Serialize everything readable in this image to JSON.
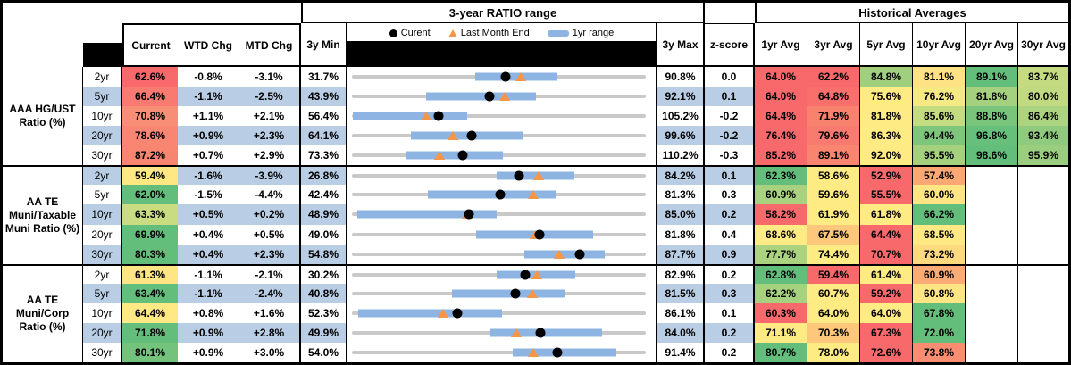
{
  "colors": {
    "row_alt": "#B9CDE4",
    "bar_1yr": "#8DB4E2",
    "track": "#C9C9C9",
    "marker_current": "#000000",
    "marker_last_month_end": "#F79646",
    "border": "#000000",
    "header_black_fill": "#000000",
    "scale_low": "#F8696B",
    "scale_mid": "#FFEB84",
    "scale_high": "#63BE7B"
  },
  "chart_data": {
    "type": "table",
    "group_titles": {
      "range": "3-year RATIO range",
      "historical": "Historical Averages"
    },
    "col_labels": {
      "current": "Current",
      "wtd": "WTD Chg",
      "mtd": "MTD Chg",
      "min": "3y Min",
      "max": "3y Max",
      "z": "z-score"
    },
    "avg_labels": [
      "1yr Avg",
      "3yr Avg",
      "5yr Avg",
      "10yr Avg",
      "20yr Avg",
      "30yr Avg"
    ],
    "legend": [
      {
        "marker": "dot",
        "label": "Curent"
      },
      {
        "marker": "triangle",
        "label": "Last Month End"
      },
      {
        "marker": "bar",
        "label": "1yr range"
      }
    ],
    "sections": [
      {
        "label": "AAA HG/UST Ratio (%)",
        "rows": [
          {
            "tenor": "2yr",
            "current": "62.6%",
            "cur_val": 62.6,
            "current_color": "#F8696B",
            "wtd": "-0.8%",
            "mtd": "-3.1%",
            "min3y": "31.7%",
            "min_val": 31.7,
            "max3y": "90.8%",
            "max_val": 90.8,
            "zscore": "0.0",
            "lme_val": 65.7,
            "range_1yr": [
              56.4,
              73.1
            ],
            "avgs": [
              {
                "text": "64.0%",
                "color": "#F8696B"
              },
              {
                "text": "62.2%",
                "color": "#F8696B"
              },
              {
                "text": "84.8%",
                "color": "#A0D07F"
              },
              {
                "text": "81.1%",
                "color": "#FFE283"
              },
              {
                "text": "89.1%",
                "color": "#63BE7B"
              },
              {
                "text": "83.7%",
                "color": "#C5DB81"
              }
            ]
          },
          {
            "tenor": "5yr",
            "current": "66.4%",
            "cur_val": 66.4,
            "current_color": "#F87A70",
            "wtd": "-1.1%",
            "mtd": "-2.5%",
            "min3y": "43.9%",
            "min_val": 43.9,
            "max3y": "92.1%",
            "max_val": 92.1,
            "zscore": "0.1",
            "lme_val": 68.9,
            "range_1yr": [
              56.1,
              74.1
            ],
            "avgs": [
              {
                "text": "64.0%",
                "color": "#F8696B"
              },
              {
                "text": "64.8%",
                "color": "#F96F6C"
              },
              {
                "text": "75.6%",
                "color": "#FFEB84"
              },
              {
                "text": "76.2%",
                "color": "#F5E983"
              },
              {
                "text": "81.8%",
                "color": "#A5D17F"
              },
              {
                "text": "80.0%",
                "color": "#C1DA81"
              }
            ]
          },
          {
            "tenor": "10yr",
            "current": "70.8%",
            "cur_val": 70.8,
            "current_color": "#F98E77",
            "wtd": "+1.1%",
            "mtd": "+2.1%",
            "min3y": "56.4%",
            "min_val": 56.4,
            "max3y": "105.2%",
            "max_val": 105.2,
            "zscore": "-0.2",
            "lme_val": 68.7,
            "range_1yr": [
              56.6,
              75.6
            ],
            "avgs": [
              {
                "text": "64.4%",
                "color": "#F8696B"
              },
              {
                "text": "71.9%",
                "color": "#F9826F"
              },
              {
                "text": "81.8%",
                "color": "#FFEB84"
              },
              {
                "text": "85.6%",
                "color": "#C3DB81"
              },
              {
                "text": "88.8%",
                "color": "#7AC57C"
              },
              {
                "text": "86.4%",
                "color": "#ACD380"
              }
            ]
          },
          {
            "tenor": "20yr",
            "current": "78.6%",
            "cur_val": 78.6,
            "current_color": "#F98672",
            "wtd": "+0.9%",
            "mtd": "+2.3%",
            "min3y": "64.1%",
            "min_val": 64.1,
            "max3y": "99.6%",
            "max_val": 99.6,
            "zscore": "-0.2",
            "lme_val": 76.3,
            "range_1yr": [
              71.2,
              84.8
            ],
            "avgs": [
              {
                "text": "76.4%",
                "color": "#F8696B"
              },
              {
                "text": "79.6%",
                "color": "#F97A6E"
              },
              {
                "text": "86.3%",
                "color": "#FFEB84"
              },
              {
                "text": "94.4%",
                "color": "#7FC67D"
              },
              {
                "text": "96.8%",
                "color": "#66BF7B"
              },
              {
                "text": "93.4%",
                "color": "#8FCA7E"
              }
            ]
          },
          {
            "tenor": "30yr",
            "current": "87.2%",
            "cur_val": 87.2,
            "current_color": "#F88570",
            "wtd": "+0.7%",
            "mtd": "+2.9%",
            "min3y": "73.3%",
            "min_val": 73.3,
            "max3y": "110.2%",
            "max_val": 110.2,
            "zscore": "-0.3",
            "lme_val": 84.3,
            "range_1yr": [
              80.0,
              92.2
            ],
            "avgs": [
              {
                "text": "85.2%",
                "color": "#F8696B"
              },
              {
                "text": "89.1%",
                "color": "#F98571"
              },
              {
                "text": "92.0%",
                "color": "#FFEB84"
              },
              {
                "text": "95.5%",
                "color": "#A5D17F"
              },
              {
                "text": "98.6%",
                "color": "#63BE7B"
              },
              {
                "text": "95.9%",
                "color": "#9ACD7E"
              }
            ]
          }
        ]
      },
      {
        "label": "AA TE Muni/Taxable Muni Ratio (%)",
        "rows": [
          {
            "tenor": "2yr",
            "current": "59.4%",
            "cur_val": 59.4,
            "current_color": "#FFE884",
            "wtd": "-1.6%",
            "mtd": "-3.9%",
            "min3y": "26.8%",
            "min_val": 26.8,
            "max3y": "84.2%",
            "max_val": 84.2,
            "zscore": "0.1",
            "lme_val": 63.3,
            "range_1yr": [
              55.1,
              70.2
            ],
            "avgs": [
              {
                "text": "62.3%",
                "color": "#63BE7B"
              },
              {
                "text": "58.6%",
                "color": "#FFEB84"
              },
              {
                "text": "52.9%",
                "color": "#F8696B"
              },
              {
                "text": "57.4%",
                "color": "#FBA875"
              },
              {
                "text": "",
                "color": "#FFFFFF"
              },
              {
                "text": "",
                "color": "#FFFFFF"
              }
            ]
          },
          {
            "tenor": "5yr",
            "current": "62.0%",
            "cur_val": 62.0,
            "current_color": "#63BE7B",
            "wtd": "-1.5%",
            "mtd": "-4.4%",
            "min3y": "42.4%",
            "min_val": 42.4,
            "max3y": "81.3%",
            "max_val": 81.3,
            "zscore": "0.3",
            "lme_val": 66.4,
            "range_1yr": [
              52.5,
              69.5
            ],
            "avgs": [
              {
                "text": "60.9%",
                "color": "#A8D27F"
              },
              {
                "text": "59.6%",
                "color": "#FFEB84"
              },
              {
                "text": "55.5%",
                "color": "#F8696B"
              },
              {
                "text": "60.0%",
                "color": "#FFE583"
              },
              {
                "text": "",
                "color": "#FFFFFF"
              },
              {
                "text": "",
                "color": "#FFFFFF"
              }
            ]
          },
          {
            "tenor": "10yr",
            "current": "63.3%",
            "cur_val": 63.3,
            "current_color": "#C9DC81",
            "wtd": "+0.5%",
            "mtd": "+0.2%",
            "min3y": "48.9%",
            "min_val": 48.9,
            "max3y": "85.0%",
            "max_val": 85.0,
            "zscore": "0.2",
            "lme_val": 63.1,
            "range_1yr": [
              49.6,
              66.7
            ],
            "avgs": [
              {
                "text": "58.2%",
                "color": "#F8696B"
              },
              {
                "text": "61.9%",
                "color": "#FFEB84"
              },
              {
                "text": "61.8%",
                "color": "#FFEB84"
              },
              {
                "text": "66.2%",
                "color": "#63BE7B"
              },
              {
                "text": "",
                "color": "#FFFFFF"
              },
              {
                "text": "",
                "color": "#FFFFFF"
              }
            ]
          },
          {
            "tenor": "20yr",
            "current": "69.9%",
            "cur_val": 69.9,
            "current_color": "#63BE7B",
            "wtd": "+0.4%",
            "mtd": "+0.5%",
            "min3y": "49.0%",
            "min_val": 49.0,
            "max3y": "81.8%",
            "max_val": 81.8,
            "zscore": "0.4",
            "lme_val": 69.4,
            "range_1yr": [
              62.9,
              75.9
            ],
            "avgs": [
              {
                "text": "68.6%",
                "color": "#FFEB84"
              },
              {
                "text": "67.5%",
                "color": "#FDC77C"
              },
              {
                "text": "64.4%",
                "color": "#F8696B"
              },
              {
                "text": "68.5%",
                "color": "#FFE984"
              },
              {
                "text": "",
                "color": "#FFFFFF"
              },
              {
                "text": "",
                "color": "#FFFFFF"
              }
            ]
          },
          {
            "tenor": "30yr",
            "current": "80.3%",
            "cur_val": 80.3,
            "current_color": "#63BE7B",
            "wtd": "+0.4%",
            "mtd": "+2.3%",
            "min3y": "54.8%",
            "min_val": 54.8,
            "max3y": "87.7%",
            "max_val": 87.7,
            "zscore": "0.9",
            "lme_val": 78.0,
            "range_1yr": [
              74.1,
              83.1
            ],
            "avgs": [
              {
                "text": "77.7%",
                "color": "#ABD27F"
              },
              {
                "text": "74.4%",
                "color": "#FFEB84"
              },
              {
                "text": "70.7%",
                "color": "#F8696B"
              },
              {
                "text": "73.2%",
                "color": "#FDD97F"
              },
              {
                "text": "",
                "color": "#FFFFFF"
              },
              {
                "text": "",
                "color": "#FFFFFF"
              }
            ]
          }
        ]
      },
      {
        "label": "AA TE Muni/Corp Ratio (%)",
        "rows": [
          {
            "tenor": "2yr",
            "current": "61.3%",
            "cur_val": 61.3,
            "current_color": "#FFE584",
            "wtd": "-1.1%",
            "mtd": "-2.1%",
            "min3y": "30.2%",
            "min_val": 30.2,
            "max3y": "82.9%",
            "max_val": 82.9,
            "zscore": "0.2",
            "lme_val": 63.4,
            "range_1yr": [
              56.2,
              70.3
            ],
            "avgs": [
              {
                "text": "62.8%",
                "color": "#63BE7B"
              },
              {
                "text": "59.4%",
                "color": "#F8696B"
              },
              {
                "text": "61.4%",
                "color": "#FFEB84"
              },
              {
                "text": "60.9%",
                "color": "#FBAC76"
              },
              {
                "text": "",
                "color": "#FFFFFF"
              },
              {
                "text": "",
                "color": "#FFFFFF"
              }
            ]
          },
          {
            "tenor": "5yr",
            "current": "63.4%",
            "cur_val": 63.4,
            "current_color": "#63BE7B",
            "wtd": "-1.1%",
            "mtd": "-2.4%",
            "min3y": "40.8%",
            "min_val": 40.8,
            "max3y": "81.5%",
            "max_val": 81.5,
            "zscore": "0.3",
            "lme_val": 65.8,
            "range_1yr": [
              54.6,
              70.4
            ],
            "avgs": [
              {
                "text": "62.2%",
                "color": "#A6D17F"
              },
              {
                "text": "60.7%",
                "color": "#FFEB84"
              },
              {
                "text": "59.2%",
                "color": "#F8696B"
              },
              {
                "text": "60.8%",
                "color": "#FFE583"
              },
              {
                "text": "",
                "color": "#FFFFFF"
              },
              {
                "text": "",
                "color": "#FFFFFF"
              }
            ]
          },
          {
            "tenor": "10yr",
            "current": "64.4%",
            "cur_val": 64.4,
            "current_color": "#FFE984",
            "wtd": "+0.8%",
            "mtd": "+1.6%",
            "min3y": "52.3%",
            "min_val": 52.3,
            "max3y": "86.1%",
            "max_val": 86.1,
            "zscore": "0.1",
            "lme_val": 62.8,
            "range_1yr": [
              53.0,
              69.6
            ],
            "avgs": [
              {
                "text": "60.3%",
                "color": "#F8696B"
              },
              {
                "text": "64.0%",
                "color": "#FFEB84"
              },
              {
                "text": "64.0%",
                "color": "#FFEB84"
              },
              {
                "text": "67.8%",
                "color": "#63BE7B"
              },
              {
                "text": "",
                "color": "#FFFFFF"
              },
              {
                "text": "",
                "color": "#FFFFFF"
              }
            ]
          },
          {
            "tenor": "20yr",
            "current": "71.8%",
            "cur_val": 71.8,
            "current_color": "#63BE7B",
            "wtd": "+0.9%",
            "mtd": "+2.8%",
            "min3y": "49.9%",
            "min_val": 49.9,
            "max3y": "84.0%",
            "max_val": 84.0,
            "zscore": "0.2",
            "lme_val": 69.0,
            "range_1yr": [
              66.0,
              78.9
            ],
            "avgs": [
              {
                "text": "71.1%",
                "color": "#FFEB84"
              },
              {
                "text": "70.3%",
                "color": "#FDC87C"
              },
              {
                "text": "67.3%",
                "color": "#F8696B"
              },
              {
                "text": "72.0%",
                "color": "#63BE7B"
              },
              {
                "text": "",
                "color": "#FFFFFF"
              },
              {
                "text": "",
                "color": "#FFFFFF"
              }
            ]
          },
          {
            "tenor": "30yr",
            "current": "80.1%",
            "cur_val": 80.1,
            "current_color": "#74C37C",
            "wtd": "+0.9%",
            "mtd": "+3.0%",
            "min3y": "54.0%",
            "min_val": 54.0,
            "max3y": "91.4%",
            "max_val": 91.4,
            "zscore": "0.2",
            "lme_val": 77.1,
            "range_1yr": [
              74.5,
              87.7
            ],
            "avgs": [
              {
                "text": "80.7%",
                "color": "#63BE7B"
              },
              {
                "text": "78.0%",
                "color": "#FFEB84"
              },
              {
                "text": "72.6%",
                "color": "#F8696B"
              },
              {
                "text": "73.8%",
                "color": "#F98D72"
              },
              {
                "text": "",
                "color": "#FFFFFF"
              },
              {
                "text": "",
                "color": "#FFFFFF"
              }
            ]
          }
        ]
      }
    ]
  }
}
